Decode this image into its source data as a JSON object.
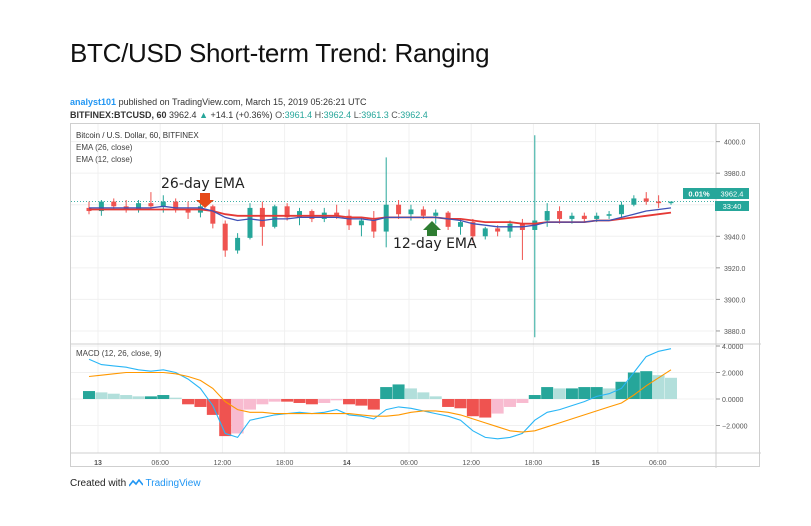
{
  "page": {
    "title": "BTC/USD Short-term Trend: Ranging"
  },
  "publication": {
    "author": "analyst101",
    "text": "published on TradingView.com, March 15, 2019 05:26:21 UTC"
  },
  "quote": {
    "symbol": "BITFINEX:BTCUSD, 60",
    "last": "3962.4",
    "change": "+14.1 (+0.36%)",
    "o_label": "O:",
    "o": "3961.4",
    "h_label": "H:",
    "h": "3962.4",
    "l_label": "L:",
    "l": "3961.3",
    "c_label": "C:",
    "c": "3962.4"
  },
  "legend": {
    "main": "Bitcoin / U.S. Dollar, 60, BITFINEX",
    "ema26": "EMA (26, close)",
    "ema12": "EMA (12, close)",
    "macd": "MACD (12, 26, close, 9)"
  },
  "annotations": {
    "ema26_label": "26-day EMA",
    "ema12_label": "12-day EMA"
  },
  "badges": {
    "pct": "0.01%",
    "price": "3962.4",
    "countdown": "33:40"
  },
  "colors": {
    "up": "#26a69a",
    "down": "#ef5350",
    "ema26": "#e53935",
    "ema12": "#3f51b5",
    "macd_line": "#29b6f6",
    "signal_line": "#ff9800",
    "hist_up_strong": "#26a69a",
    "hist_up_weak": "#b2dfdb",
    "hist_down_strong": "#ef5350",
    "hist_down_weak": "#f8bbd0",
    "badge_price": "#26a69a",
    "grid": "#f0f0f0"
  },
  "footer": {
    "created_with": "Created with",
    "brand": "TradingView"
  },
  "chart_data": [
    {
      "type": "candlestick",
      "name": "Bitcoin / U.S. Dollar, 60, BITFINEX",
      "y_ticks": [
        "4000.0",
        "3980.0",
        "3960.0",
        "3940.0",
        "3920.0",
        "3900.0",
        "3880.0"
      ],
      "ylim": [
        3873,
        4008
      ],
      "x_ticks": [
        "13",
        "06:00",
        "12:00",
        "18:00",
        "14",
        "06:00",
        "12:00",
        "18:00",
        "15",
        "06:00"
      ],
      "x_index_range": [
        0,
        47
      ],
      "candles": [
        {
          "t": 0,
          "o": 3958,
          "h": 3962,
          "l": 3954,
          "c": 3956
        },
        {
          "t": 1,
          "o": 3956,
          "h": 3963,
          "l": 3953,
          "c": 3962
        },
        {
          "t": 2,
          "o": 3962,
          "h": 3964,
          "l": 3957,
          "c": 3959
        },
        {
          "t": 3,
          "o": 3959,
          "h": 3963,
          "l": 3955,
          "c": 3957
        },
        {
          "t": 4,
          "o": 3957,
          "h": 3963,
          "l": 3955,
          "c": 3961
        },
        {
          "t": 5,
          "o": 3961,
          "h": 3968,
          "l": 3957,
          "c": 3959
        },
        {
          "t": 6,
          "o": 3959,
          "h": 3966,
          "l": 3955,
          "c": 3962
        },
        {
          "t": 7,
          "o": 3962,
          "h": 3964,
          "l": 3955,
          "c": 3957
        },
        {
          "t": 8,
          "o": 3957,
          "h": 3962,
          "l": 3951,
          "c": 3955
        },
        {
          "t": 9,
          "o": 3955,
          "h": 3961,
          "l": 3952,
          "c": 3959
        },
        {
          "t": 10,
          "o": 3959,
          "h": 3960,
          "l": 3945,
          "c": 3948
        },
        {
          "t": 11,
          "o": 3948,
          "h": 3950,
          "l": 3927,
          "c": 3931
        },
        {
          "t": 12,
          "o": 3931,
          "h": 3942,
          "l": 3929,
          "c": 3939
        },
        {
          "t": 13,
          "o": 3939,
          "h": 3961,
          "l": 3938,
          "c": 3958
        },
        {
          "t": 14,
          "o": 3958,
          "h": 3962,
          "l": 3934,
          "c": 3946
        },
        {
          "t": 15,
          "o": 3946,
          "h": 3960,
          "l": 3945,
          "c": 3959
        },
        {
          "t": 16,
          "o": 3959,
          "h": 3961,
          "l": 3950,
          "c": 3952
        },
        {
          "t": 17,
          "o": 3952,
          "h": 3958,
          "l": 3947,
          "c": 3956
        },
        {
          "t": 18,
          "o": 3956,
          "h": 3957,
          "l": 3949,
          "c": 3951
        },
        {
          "t": 19,
          "o": 3951,
          "h": 3958,
          "l": 3949,
          "c": 3955
        },
        {
          "t": 20,
          "o": 3955,
          "h": 3960,
          "l": 3951,
          "c": 3953
        },
        {
          "t": 21,
          "o": 3953,
          "h": 3957,
          "l": 3944,
          "c": 3947
        },
        {
          "t": 22,
          "o": 3947,
          "h": 3952,
          "l": 3940,
          "c": 3950
        },
        {
          "t": 23,
          "o": 3950,
          "h": 3956,
          "l": 3939,
          "c": 3943
        },
        {
          "t": 24,
          "o": 3943,
          "h": 3990,
          "l": 3933,
          "c": 3960
        },
        {
          "t": 25,
          "o": 3960,
          "h": 3963,
          "l": 3951,
          "c": 3954
        },
        {
          "t": 26,
          "o": 3954,
          "h": 3960,
          "l": 3950,
          "c": 3957
        },
        {
          "t": 27,
          "o": 3957,
          "h": 3959,
          "l": 3951,
          "c": 3953
        },
        {
          "t": 28,
          "o": 3953,
          "h": 3957,
          "l": 3948,
          "c": 3955
        },
        {
          "t": 29,
          "o": 3955,
          "h": 3956,
          "l": 3944,
          "c": 3946
        },
        {
          "t": 30,
          "o": 3946,
          "h": 3951,
          "l": 3941,
          "c": 3949
        },
        {
          "t": 31,
          "o": 3949,
          "h": 3951,
          "l": 3936,
          "c": 3940
        },
        {
          "t": 32,
          "o": 3940,
          "h": 3946,
          "l": 3938,
          "c": 3945
        },
        {
          "t": 33,
          "o": 3945,
          "h": 3947,
          "l": 3940,
          "c": 3943
        },
        {
          "t": 34,
          "o": 3943,
          "h": 3950,
          "l": 3939,
          "c": 3948
        },
        {
          "t": 35,
          "o": 3948,
          "h": 3951,
          "l": 3925,
          "c": 3944
        },
        {
          "t": 36,
          "o": 3944,
          "h": 4004,
          "l": 3876,
          "c": 3950
        },
        {
          "t": 37,
          "o": 3950,
          "h": 3961,
          "l": 3946,
          "c": 3956
        },
        {
          "t": 38,
          "o": 3956,
          "h": 3959,
          "l": 3948,
          "c": 3951
        },
        {
          "t": 39,
          "o": 3951,
          "h": 3955,
          "l": 3948,
          "c": 3953
        },
        {
          "t": 40,
          "o": 3953,
          "h": 3955,
          "l": 3949,
          "c": 3951
        },
        {
          "t": 41,
          "o": 3951,
          "h": 3955,
          "l": 3949,
          "c": 3953
        },
        {
          "t": 42,
          "o": 3953,
          "h": 3956,
          "l": 3951,
          "c": 3954
        },
        {
          "t": 43,
          "o": 3954,
          "h": 3962,
          "l": 3952,
          "c": 3960
        },
        {
          "t": 44,
          "o": 3960,
          "h": 3966,
          "l": 3959,
          "c": 3964
        },
        {
          "t": 45,
          "o": 3964,
          "h": 3968,
          "l": 3960,
          "c": 3962
        },
        {
          "t": 46,
          "o": 3962,
          "h": 3966,
          "l": 3958,
          "c": 3961
        },
        {
          "t": 47,
          "o": 3961,
          "h": 3962,
          "l": 3960,
          "c": 3962
        }
      ],
      "series": [
        {
          "name": "EMA (26, close)",
          "key": "ema26",
          "values": [
            3957,
            3957,
            3957,
            3957,
            3957,
            3957,
            3957,
            3957,
            3957,
            3957,
            3956,
            3954,
            3953,
            3953,
            3953,
            3953,
            3953,
            3953,
            3953,
            3953,
            3953,
            3952,
            3952,
            3951,
            3952,
            3952,
            3952,
            3952,
            3952,
            3951,
            3951,
            3950,
            3949,
            3949,
            3949,
            3948,
            3948,
            3949,
            3949,
            3949,
            3949,
            3950,
            3950,
            3951,
            3952,
            3953,
            3954,
            3955
          ]
        },
        {
          "name": "EMA (12, close)",
          "key": "ema12",
          "values": [
            3958,
            3958,
            3958,
            3958,
            3958,
            3958,
            3959,
            3958,
            3958,
            3958,
            3956,
            3952,
            3950,
            3951,
            3950,
            3951,
            3951,
            3952,
            3952,
            3952,
            3952,
            3951,
            3951,
            3950,
            3952,
            3952,
            3952,
            3952,
            3952,
            3951,
            3950,
            3948,
            3947,
            3946,
            3946,
            3946,
            3947,
            3949,
            3949,
            3949,
            3949,
            3950,
            3950,
            3952,
            3954,
            3956,
            3957,
            3958
          ]
        }
      ]
    },
    {
      "type": "bar",
      "name": "MACD (12, 26, close, 9)",
      "y_ticks": [
        "4.0000",
        "2.0000",
        "0.0000",
        "-2.0000"
      ],
      "ylim": [
        -4,
        4
      ],
      "histogram": [
        0.6,
        0.5,
        0.4,
        0.3,
        0.2,
        0.2,
        0.3,
        0.1,
        -0.4,
        -0.6,
        -1.2,
        -2.8,
        -2.6,
        -0.8,
        -0.4,
        -0.2,
        -0.2,
        -0.3,
        -0.4,
        -0.3,
        -0.1,
        -0.4,
        -0.5,
        -0.8,
        0.9,
        1.1,
        0.8,
        0.5,
        0.2,
        -0.6,
        -0.7,
        -1.3,
        -1.4,
        -1.1,
        -0.6,
        -0.3,
        0.3,
        0.9,
        0.8,
        0.8,
        0.9,
        0.9,
        0.8,
        1.3,
        2.0,
        2.1,
        1.8,
        1.6
      ],
      "series": [
        {
          "name": "MACD",
          "key": "macd",
          "values": [
            3.0,
            2.6,
            2.5,
            2.4,
            2.2,
            2.1,
            2.2,
            2.0,
            1.5,
            0.8,
            -0.5,
            -2.6,
            -2.9,
            -1.6,
            -1.4,
            -1.2,
            -1.1,
            -1.0,
            -1.1,
            -1.0,
            -0.8,
            -1.2,
            -1.3,
            -1.5,
            -0.8,
            -0.6,
            -0.7,
            -0.9,
            -1.1,
            -1.3,
            -1.6,
            -2.4,
            -2.9,
            -3.0,
            -2.9,
            -2.6,
            -1.6,
            -1.0,
            -0.8,
            -0.5,
            -0.2,
            0.2,
            0.4,
            0.8,
            2.0,
            3.2,
            3.6,
            3.8
          ]
        },
        {
          "name": "Signal",
          "key": "signal",
          "values": [
            1.7,
            1.8,
            1.9,
            2.0,
            2.0,
            2.0,
            2.0,
            1.9,
            1.7,
            1.4,
            0.8,
            -0.2,
            -0.8,
            -1.0,
            -1.0,
            -1.1,
            -1.1,
            -1.1,
            -1.1,
            -1.1,
            -1.1,
            -1.1,
            -1.2,
            -1.3,
            -1.3,
            -1.2,
            -1.0,
            -0.9,
            -0.9,
            -1.0,
            -1.2,
            -1.5,
            -1.8,
            -2.1,
            -2.4,
            -2.5,
            -2.4,
            -2.1,
            -1.8,
            -1.5,
            -1.2,
            -0.9,
            -0.6,
            -0.3,
            0.3,
            1.0,
            1.6,
            2.2
          ]
        }
      ]
    }
  ]
}
